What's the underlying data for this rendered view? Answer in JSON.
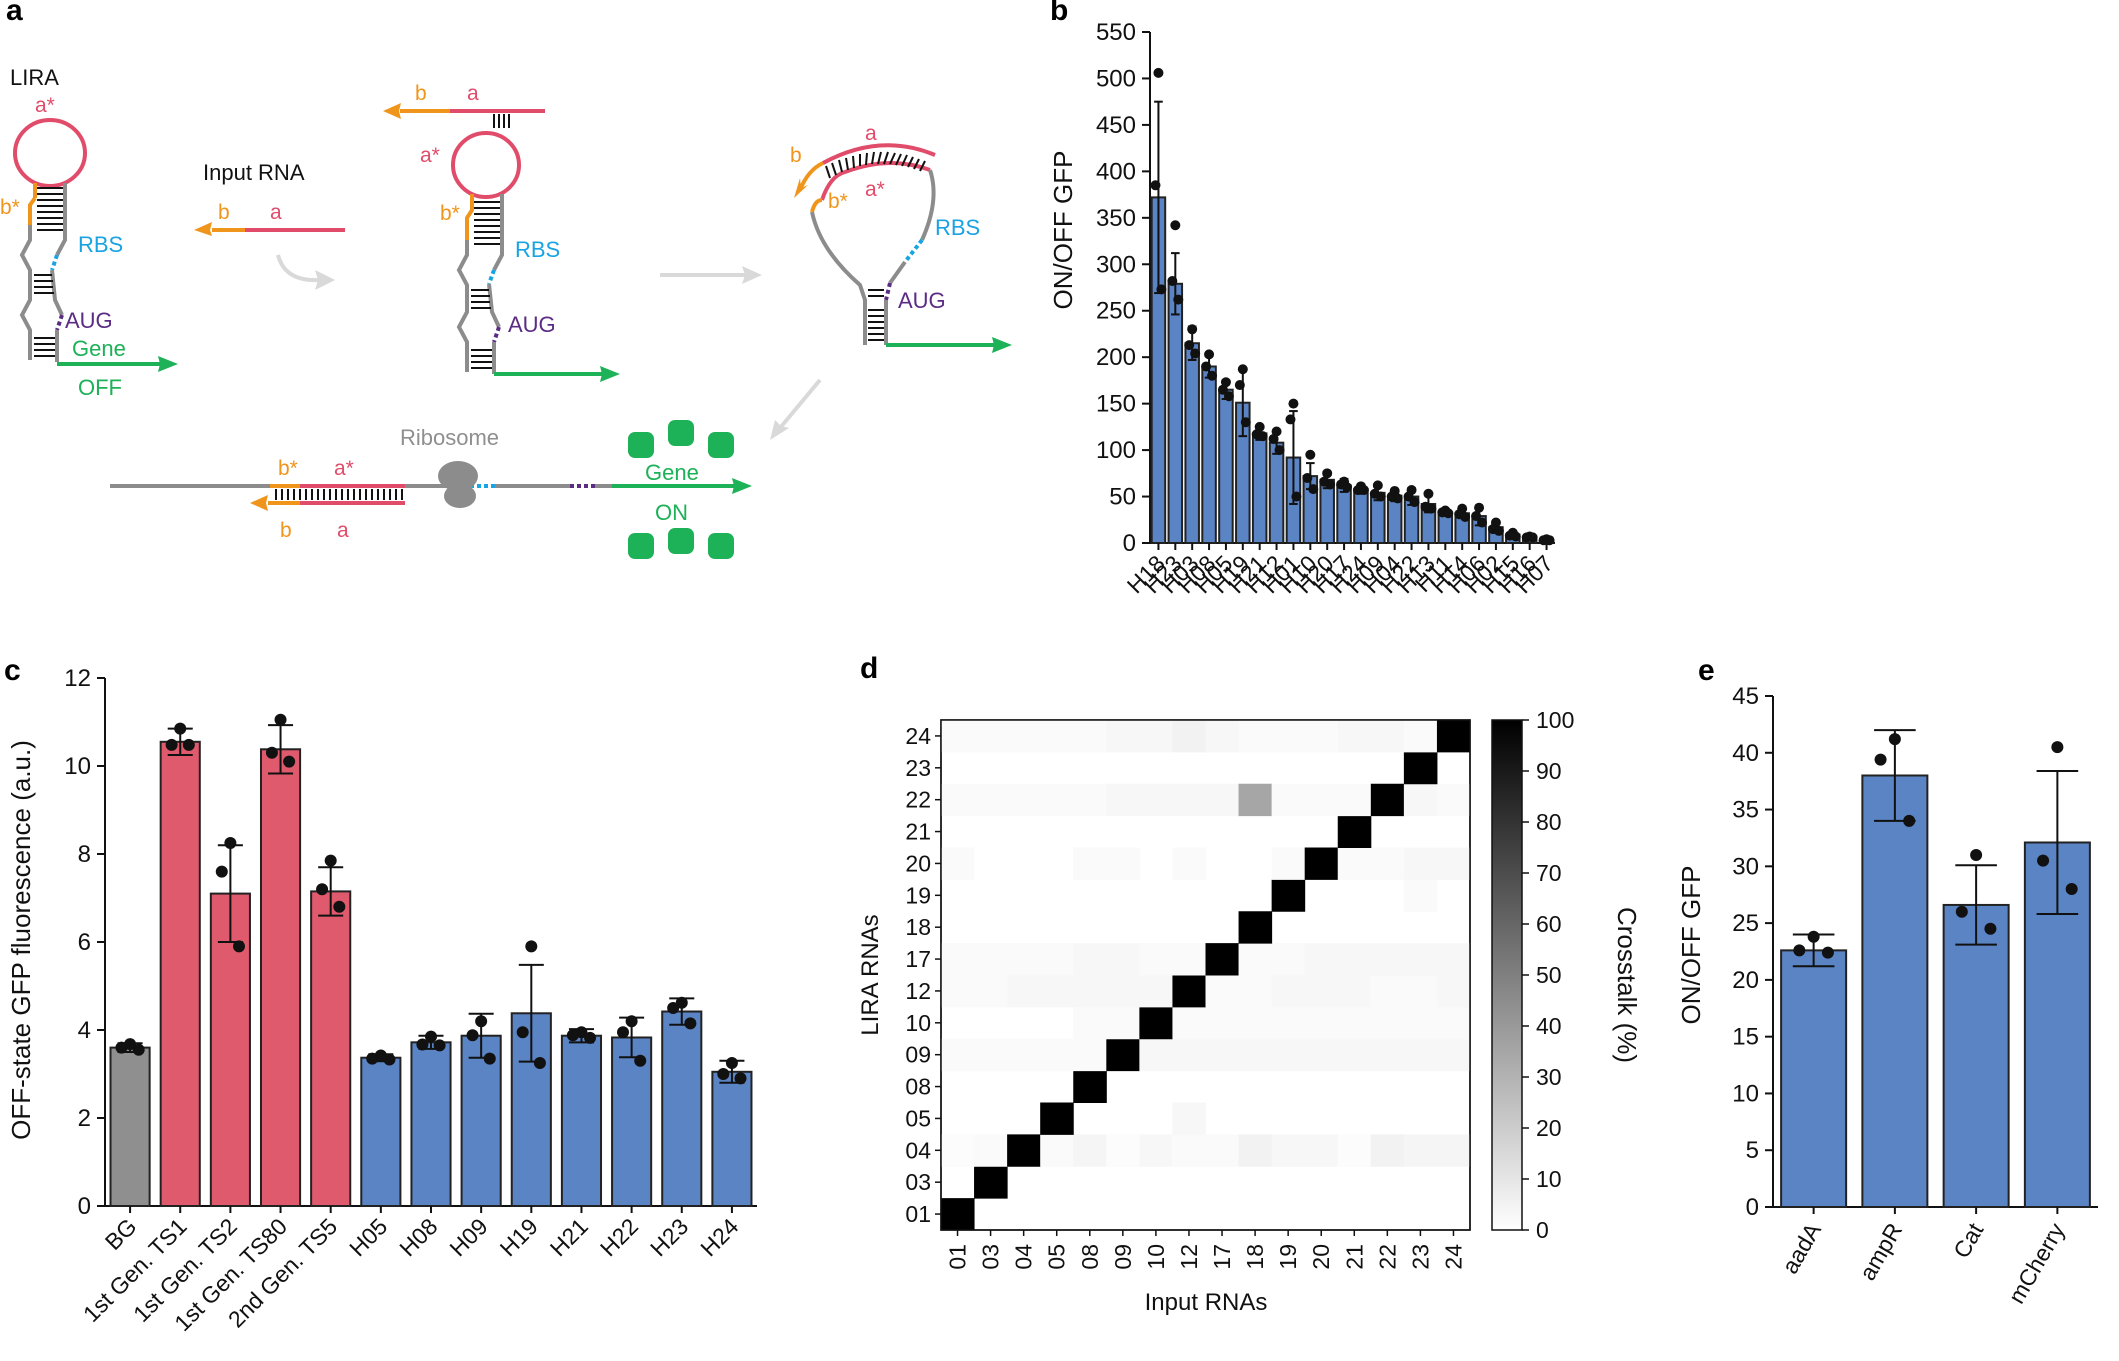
{
  "colors": {
    "blue": "#5b84c4",
    "red": "#e05a6d",
    "gray": "#8f8f8f",
    "orange": "#f0951c",
    "pink": "#e04c6a",
    "cyan": "#1aa3e2",
    "purple": "#5b2c84",
    "green": "#1db158",
    "lightgray": "#d9d9d9",
    "strand": "#8c8c8c"
  },
  "panel_labels": {
    "a": "a",
    "b": "b",
    "c": "c",
    "d": "d",
    "e": "e"
  },
  "schematic": {
    "lira": "LIRA",
    "input_rna": "Input RNA",
    "ribosome": "Ribosome",
    "rbs": "RBS",
    "aug": "AUG",
    "gene": "Gene",
    "off": "OFF",
    "on": "ON",
    "a": "a",
    "a_star": "a*",
    "b": "b",
    "b_star": "b*"
  },
  "chart_data": [
    {
      "panel": "b",
      "type": "bar",
      "ylabel": "ON/OFF GFP",
      "ylim": [
        0,
        550
      ],
      "yticks": [
        0,
        50,
        100,
        150,
        200,
        250,
        300,
        350,
        400,
        450,
        500,
        550
      ],
      "categories": [
        "H18",
        "H23",
        "H03",
        "H08",
        "H05",
        "H19",
        "H21",
        "H12",
        "H01",
        "H10",
        "H20",
        "H17",
        "H24",
        "H09",
        "H04",
        "H22",
        "H13",
        "H11",
        "H14",
        "H06",
        "H02",
        "H15",
        "H16",
        "H07"
      ],
      "values": [
        372,
        279,
        215,
        190,
        165,
        151,
        118,
        108,
        92,
        72,
        68,
        62,
        58,
        54,
        51,
        50,
        42,
        33,
        32,
        29,
        17,
        9,
        6,
        3
      ],
      "errors": [
        103,
        33,
        18,
        12,
        10,
        36,
        7,
        12,
        50,
        14,
        9,
        7,
        5,
        8,
        6,
        9,
        9,
        3,
        5,
        10,
        6,
        3,
        1,
        1
      ],
      "points": [
        [
          506,
          385,
          273
        ],
        [
          342,
          282,
          262
        ],
        [
          230,
          213,
          204
        ],
        [
          203,
          190,
          180
        ],
        [
          173,
          165,
          158
        ],
        [
          187,
          170,
          130
        ],
        [
          125,
          117,
          115
        ],
        [
          120,
          112,
          100
        ],
        [
          150,
          133,
          50
        ],
        [
          95,
          70,
          58
        ],
        [
          75,
          66,
          63
        ],
        [
          66,
          63,
          60
        ],
        [
          61,
          57,
          57
        ],
        [
          62,
          53,
          50
        ],
        [
          56,
          50,
          48
        ],
        [
          57,
          50,
          44
        ],
        [
          53,
          39,
          37
        ],
        [
          35,
          33,
          32
        ],
        [
          37,
          31,
          28
        ],
        [
          38,
          29,
          22
        ],
        [
          22,
          15,
          13
        ],
        [
          11,
          8,
          7
        ],
        [
          7,
          6,
          6
        ],
        [
          4,
          3,
          3
        ]
      ],
      "bar_color": "#5b84c4"
    },
    {
      "panel": "c",
      "type": "bar",
      "ylabel": "OFF-state GFP fluorescence (a.u.)",
      "ylim": [
        0,
        12
      ],
      "yticks": [
        0,
        2,
        4,
        6,
        8,
        10,
        12
      ],
      "categories": [
        "BG",
        "1st Gen. TS1",
        "1st Gen. TS2",
        "1st Gen. TS80",
        "2nd Gen. TS5",
        "H05",
        "H08",
        "H09",
        "H19",
        "H21",
        "H22",
        "H23",
        "H24"
      ],
      "values": [
        3.6,
        10.55,
        7.1,
        10.38,
        7.15,
        3.37,
        3.72,
        3.87,
        4.38,
        3.87,
        3.83,
        4.42,
        3.05
      ],
      "errors": [
        0.1,
        0.3,
        1.1,
        0.55,
        0.55,
        0.08,
        0.15,
        0.5,
        1.1,
        0.15,
        0.45,
        0.3,
        0.25
      ],
      "points": [
        [
          3.68,
          3.6,
          3.55
        ],
        [
          10.85,
          10.48,
          10.48
        ],
        [
          8.25,
          7.6,
          5.9
        ],
        [
          11.05,
          10.3,
          10.1
        ],
        [
          7.85,
          7.2,
          6.8
        ],
        [
          3.42,
          3.35,
          3.33
        ],
        [
          3.85,
          3.67,
          3.65
        ],
        [
          4.2,
          3.88,
          3.35
        ],
        [
          5.9,
          3.95,
          3.25
        ],
        [
          3.95,
          3.88,
          3.82
        ],
        [
          4.2,
          3.95,
          3.3
        ],
        [
          4.62,
          4.5,
          4.15
        ],
        [
          3.25,
          3.0,
          2.9
        ]
      ],
      "bar_colors": [
        "#8f8f8f",
        "#e05a6d",
        "#e05a6d",
        "#e05a6d",
        "#e05a6d",
        "#5b84c4",
        "#5b84c4",
        "#5b84c4",
        "#5b84c4",
        "#5b84c4",
        "#5b84c4",
        "#5b84c4",
        "#5b84c4"
      ]
    },
    {
      "panel": "d",
      "type": "heatmap",
      "xlabel": "Input RNAs",
      "ylabel": "LIRA RNAs",
      "x_categories": [
        "01",
        "03",
        "04",
        "05",
        "08",
        "09",
        "10",
        "12",
        "17",
        "18",
        "19",
        "20",
        "21",
        "22",
        "23",
        "24"
      ],
      "y_categories": [
        "01",
        "03",
        "04",
        "05",
        "08",
        "09",
        "10",
        "12",
        "17",
        "18",
        "19",
        "20",
        "21",
        "22",
        "23",
        "24"
      ],
      "colorbar_label": "Crosstalk (%)",
      "colorbar_ticks": [
        0,
        10,
        20,
        30,
        40,
        50,
        60,
        70,
        80,
        90,
        100
      ],
      "values": [
        [
          100,
          0,
          0,
          0,
          0,
          0,
          0,
          0,
          0,
          0,
          0,
          0,
          0,
          0,
          0,
          0
        ],
        [
          0,
          100,
          0,
          0,
          0,
          0,
          0,
          0,
          0,
          0,
          0,
          0,
          0,
          0,
          0,
          0
        ],
        [
          1,
          2,
          100,
          2,
          4,
          1,
          3,
          2,
          2,
          5,
          3,
          3,
          1,
          5,
          4,
          4
        ],
        [
          0,
          0,
          0,
          100,
          0,
          0,
          0,
          3,
          0,
          0,
          0,
          0,
          0,
          0,
          0,
          0
        ],
        [
          0,
          0,
          0,
          0,
          100,
          0,
          0,
          0,
          0,
          0,
          0,
          0,
          0,
          0,
          0,
          0
        ],
        [
          2,
          2,
          2,
          2,
          2,
          100,
          3,
          3,
          3,
          3,
          3,
          3,
          3,
          3,
          3,
          3
        ],
        [
          0,
          0,
          0,
          0,
          2,
          2,
          100,
          2,
          2,
          2,
          2,
          2,
          2,
          2,
          2,
          2
        ],
        [
          2,
          2,
          3,
          3,
          3,
          3,
          3,
          100,
          2,
          2,
          3,
          3,
          3,
          2,
          2,
          3
        ],
        [
          2,
          2,
          2,
          2,
          3,
          3,
          2,
          2,
          100,
          2,
          2,
          3,
          3,
          3,
          3,
          3
        ],
        [
          0,
          0,
          0,
          0,
          0,
          0,
          0,
          0,
          0,
          100,
          0,
          0,
          0,
          0,
          0,
          0
        ],
        [
          0,
          0,
          0,
          0,
          0,
          0,
          0,
          0,
          0,
          0,
          100,
          0,
          0,
          0,
          2,
          0
        ],
        [
          2,
          0,
          0,
          0,
          2,
          2,
          0,
          2,
          0,
          0,
          2,
          100,
          2,
          2,
          3,
          3
        ],
        [
          0,
          0,
          0,
          0,
          0,
          0,
          0,
          0,
          0,
          0,
          0,
          0,
          100,
          0,
          0,
          0
        ],
        [
          2,
          2,
          2,
          2,
          2,
          3,
          3,
          3,
          3,
          35,
          2,
          2,
          2,
          100,
          3,
          2
        ],
        [
          0,
          0,
          0,
          0,
          0,
          0,
          0,
          0,
          0,
          0,
          0,
          0,
          0,
          0,
          100,
          0
        ],
        [
          2,
          2,
          2,
          2,
          2,
          3,
          3,
          5,
          3,
          2,
          2,
          2,
          3,
          3,
          2,
          100
        ]
      ]
    },
    {
      "panel": "e",
      "type": "bar",
      "ylabel": "ON/OFF GFP",
      "ylim": [
        0,
        45
      ],
      "yticks": [
        0,
        5,
        10,
        15,
        20,
        25,
        30,
        35,
        40,
        45
      ],
      "categories": [
        "aadA",
        "ampR",
        "Cat",
        "mCherry"
      ],
      "values": [
        22.6,
        38.0,
        26.6,
        32.1
      ],
      "errors": [
        1.4,
        4.0,
        3.5,
        6.3
      ],
      "points": [
        [
          23.8,
          22.6,
          22.4
        ],
        [
          41.2,
          39.4,
          34.0
        ],
        [
          31.0,
          26.0,
          24.5
        ],
        [
          40.5,
          30.5,
          28.0
        ]
      ],
      "bar_color": "#5b84c4"
    }
  ]
}
